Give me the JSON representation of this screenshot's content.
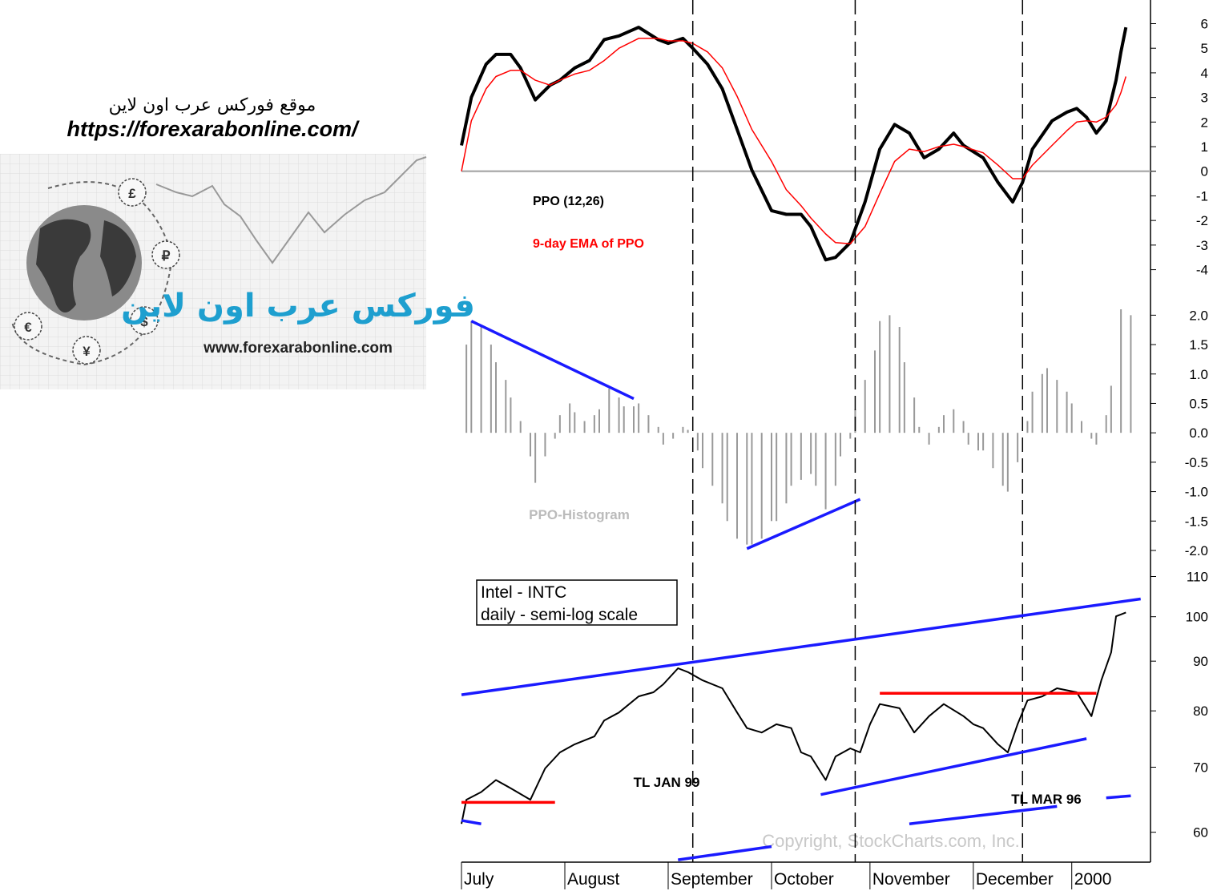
{
  "logo": {
    "heading": "موقع فوركس عرب اون لاين",
    "url": "https://forexarabonline.com/",
    "brand": "فوركس عرب اون لاين",
    "site": "www.forexarabonline.com",
    "symbols": [
      "£",
      "₽",
      "$",
      "¥",
      "€"
    ]
  },
  "chart_data": [
    {
      "type": "line",
      "xlim": [
        0,
        140
      ],
      "ylim": [
        -4.6,
        6.7
      ],
      "yticks": [
        -4,
        -3,
        -2,
        -1,
        0,
        1,
        2,
        3,
        4,
        5,
        6
      ],
      "zero_line": true,
      "x": [
        0,
        2,
        5,
        7,
        10,
        12,
        15,
        18,
        20,
        23,
        26,
        29,
        32,
        36,
        40,
        42,
        45,
        47,
        50,
        53,
        56,
        59,
        63,
        66,
        69,
        71,
        74,
        76,
        79,
        82,
        85,
        88,
        91,
        94,
        97,
        100,
        102,
        106,
        109,
        112,
        114,
        116,
        120,
        123,
        125,
        127,
        129,
        131,
        133,
        134,
        135
      ],
      "series": [
        {
          "name": "PPO (12,26)",
          "color": "#000000",
          "values": [
            1.05,
            3.0,
            4.35,
            4.75,
            4.75,
            4.2,
            2.9,
            3.5,
            3.7,
            4.2,
            4.5,
            5.35,
            5.5,
            5.85,
            5.35,
            5.2,
            5.4,
            5.0,
            4.35,
            3.35,
            1.7,
            0.05,
            -1.6,
            -1.75,
            -1.75,
            -2.25,
            -3.6,
            -3.5,
            -2.9,
            -1.25,
            0.9,
            1.9,
            1.55,
            0.55,
            0.9,
            1.55,
            1.05,
            0.55,
            -0.45,
            -1.25,
            -0.45,
            0.9,
            2.05,
            2.4,
            2.55,
            2.2,
            1.55,
            2.05,
            3.7,
            4.85,
            5.85
          ]
        },
        {
          "name": "9-day EMA of PPO",
          "color": "#ff0000",
          "values": [
            0,
            2.05,
            3.35,
            3.85,
            4.1,
            4.1,
            3.7,
            3.5,
            3.7,
            3.95,
            4.1,
            4.5,
            5.0,
            5.4,
            5.4,
            5.3,
            5.3,
            5.2,
            4.85,
            4.2,
            3.05,
            1.7,
            0.4,
            -0.75,
            -1.4,
            -1.9,
            -2.55,
            -2.9,
            -2.95,
            -2.25,
            -0.9,
            0.4,
            0.9,
            0.8,
            1.0,
            1.1,
            1.0,
            0.75,
            0.25,
            -0.3,
            -0.3,
            0.25,
            1.05,
            1.65,
            2.0,
            2.05,
            2.0,
            2.2,
            2.7,
            3.2,
            3.85
          ]
        }
      ]
    },
    {
      "type": "bar",
      "label": "PPO-Histogram",
      "color": "#999999",
      "xlim": [
        0,
        140
      ],
      "ylim": [
        -2.3,
        2.4
      ],
      "yticks": [
        {
          "value": -2,
          "label": "-2.0"
        },
        -1.5,
        {
          "value": -1,
          "label": "-1.0"
        },
        -0.5,
        {
          "value": 0,
          "label": "0.0"
        },
        0.5,
        {
          "value": 1,
          "label": "1.0"
        },
        1.5,
        {
          "value": 2,
          "label": "2.0"
        }
      ],
      "x": [
        1,
        2,
        4,
        6,
        7,
        9,
        10,
        12,
        14,
        15,
        17,
        19,
        20,
        22,
        23,
        25,
        27,
        28,
        30,
        32,
        33,
        35,
        36,
        38,
        40,
        41,
        43,
        45,
        46,
        48,
        49,
        51,
        53,
        54,
        56,
        58,
        59,
        61,
        63,
        64,
        66,
        67,
        69,
        71,
        72,
        74,
        76,
        77,
        79,
        80,
        82,
        84,
        85,
        87,
        89,
        90,
        92,
        93,
        95,
        97,
        98,
        100,
        102,
        103,
        105,
        106,
        108,
        110,
        111,
        113,
        115,
        116,
        118,
        119,
        121,
        123,
        124,
        126,
        128,
        129,
        131,
        132,
        134,
        136
      ],
      "values": [
        1.5,
        1.9,
        1.8,
        1.5,
        1.2,
        0.9,
        0.6,
        0.2,
        -0.4,
        -0.85,
        -0.4,
        -0.1,
        0.3,
        0.5,
        0.35,
        0.2,
        0.3,
        0.4,
        0.75,
        0.6,
        0.45,
        0.45,
        0.5,
        0.3,
        0.1,
        -0.2,
        -0.1,
        0.1,
        0.05,
        -0.3,
        -0.6,
        -0.9,
        -1.2,
        -1.5,
        -1.8,
        -1.9,
        -1.9,
        -1.8,
        -1.5,
        -1.5,
        -1.2,
        -0.9,
        -0.8,
        -0.7,
        -0.9,
        -1.3,
        -0.9,
        -0.4,
        -0.1,
        0.4,
        0.9,
        1.4,
        1.9,
        2.0,
        1.8,
        1.2,
        0.6,
        0.1,
        -0.2,
        0.1,
        0.3,
        0.4,
        0.2,
        -0.2,
        -0.3,
        -0.3,
        -0.6,
        -0.9,
        -1.0,
        -0.5,
        0.2,
        0.7,
        1.0,
        1.1,
        0.9,
        0.7,
        0.5,
        0.2,
        -0.1,
        -0.2,
        0.3,
        0.8,
        2.1,
        2.0
      ],
      "trendlines": [
        {
          "color": "#1a1aff",
          "x": [
            2,
            35
          ],
          "values": [
            1.9,
            0.58
          ]
        },
        {
          "color": "#1a1aff",
          "x": [
            58,
            81
          ],
          "values": [
            -1.97,
            -1.13
          ]
        }
      ]
    },
    {
      "type": "line",
      "title": "Intel - INTC",
      "subtitle": "daily - semi-log scale",
      "log": true,
      "xlim": [
        0,
        140
      ],
      "ylim": [
        56,
        112
      ],
      "yticks": [
        60,
        70,
        80,
        90,
        100,
        110
      ],
      "xticks": [
        {
          "value": 0,
          "label": "July"
        },
        {
          "value": 21,
          "label": "August"
        },
        {
          "value": 42,
          "label": "September"
        },
        {
          "value": 63,
          "label": "October"
        },
        {
          "value": 83,
          "label": "November"
        },
        {
          "value": 104,
          "label": "December"
        },
        {
          "value": 124,
          "label": "2000"
        }
      ],
      "vlines": [
        47,
        80,
        114
      ],
      "x": [
        0,
        1,
        4,
        7,
        10,
        14,
        17,
        20,
        23,
        27,
        29,
        32,
        36,
        39,
        41,
        44,
        46,
        49,
        53,
        56,
        58,
        61,
        64,
        67,
        69,
        71,
        74,
        76,
        79,
        81,
        83,
        85,
        89,
        92,
        95,
        98,
        102,
        104,
        106,
        109,
        111,
        113,
        115,
        118,
        121,
        125,
        128,
        130,
        132,
        133,
        135
      ],
      "series": [
        {
          "name": "Intel - INTC",
          "color": "#000000",
          "values": [
            61.2,
            64.8,
            66,
            67.9,
            66.6,
            64.8,
            69.8,
            72.5,
            73.9,
            75.3,
            78.2,
            79.7,
            82.8,
            83.6,
            85.2,
            88.5,
            87.7,
            86.0,
            84.4,
            79.7,
            76.8,
            76.0,
            77.5,
            76.8,
            72.5,
            71.8,
            67.9,
            71.8,
            73.2,
            72.5,
            77.5,
            81.3,
            80.5,
            76.0,
            79.0,
            81.3,
            79.0,
            77.5,
            76.8,
            73.9,
            72.5,
            77.5,
            82.0,
            82.8,
            84.4,
            83.6,
            79.0,
            86.0,
            91.9,
            100.1,
            101.0
          ]
        }
      ],
      "trendlines": [
        {
          "color": "#1a1aff",
          "x": [
            0,
            138
          ],
          "values": [
            83.1,
            104.3
          ]
        },
        {
          "color": "#1a1aff",
          "x": [
            73,
            127
          ],
          "values": [
            65.6,
            74.9
          ]
        },
        {
          "color": "#1a1aff",
          "x": [
            91,
            121
          ],
          "values": [
            61.2,
            63.8
          ]
        },
        {
          "color": "#1a1aff",
          "x": [
            131,
            136
          ],
          "values": [
            65.1,
            65.4
          ]
        },
        {
          "color": "#1a1aff",
          "x": [
            0,
            4
          ],
          "values": [
            61.7,
            61.2
          ]
        },
        {
          "color": "#1a1aff",
          "x": [
            44,
            63
          ],
          "values": [
            56.2,
            58.0
          ]
        },
        {
          "color": "#ff0000",
          "x": [
            0,
            19
          ],
          "values": [
            64.4,
            64.4
          ]
        },
        {
          "color": "#ff0000",
          "x": [
            85,
            129
          ],
          "values": [
            83.4,
            83.4
          ]
        }
      ],
      "annotations": [
        "TL JAN 99",
        "TL MAR 96"
      ],
      "copyright": "Copyright, StockCharts.com, Inc."
    }
  ]
}
